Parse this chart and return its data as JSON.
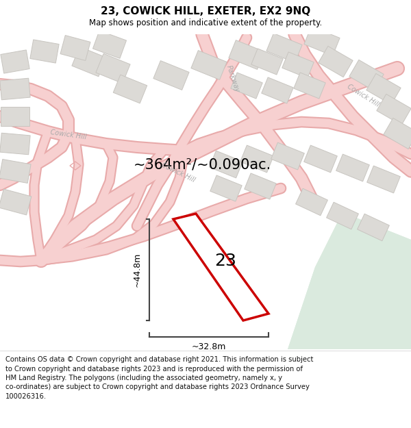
{
  "title": "23, COWICK HILL, EXETER, EX2 9NQ",
  "subtitle": "Map shows position and indicative extent of the property.",
  "area_text": "~364m²/~0.090ac.",
  "label_23": "23",
  "dim_height": "~44.8m",
  "dim_width": "~32.8m",
  "footer_lines": [
    "Contains OS data © Crown copyright and database right 2021. This information is subject",
    "to Crown copyright and database rights 2023 and is reproduced with the permission of",
    "HM Land Registry. The polygons (including the associated geometry, namely x, y",
    "co-ordinates) are subject to Crown copyright and database rights 2023 Ordnance Survey",
    "100026316."
  ],
  "bg_color": "#f2f0ed",
  "road_fill": "#f7d0d0",
  "road_edge": "#e8aaaa",
  "building_fill": "#dcdad6",
  "building_edge": "#c8c5c0",
  "green_fill": "#daeade",
  "plot_color": "#cc0000",
  "dim_color": "#444444",
  "label_color": "#aaaaaa",
  "title_fontsize": 11,
  "subtitle_fontsize": 8.5,
  "footer_fontsize": 7.2,
  "area_fontsize": 15,
  "num23_fontsize": 18
}
